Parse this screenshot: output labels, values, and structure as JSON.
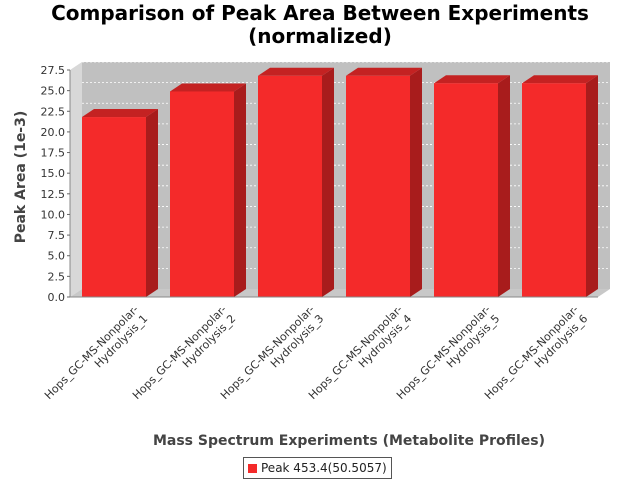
{
  "chart_data": {
    "type": "bar",
    "title_line1": "Comparison of Peak Area Between Experiments",
    "title_line2": "(normalized)",
    "xlabel": "Mass Spectrum Experiments (Metabolite Profiles)",
    "ylabel": "Peak Area (1e-3)",
    "ylim": [
      0,
      27.5
    ],
    "yticks": [
      "0.0",
      "2.5",
      "5.0",
      "7.5",
      "10.0",
      "12.5",
      "15.0",
      "17.5",
      "20.0",
      "22.5",
      "25.0",
      "27.5"
    ],
    "grid": true,
    "legend_position": "bottom",
    "categories": [
      [
        "Hops_GC-MS-Nonpolar-",
        "Hydrolysis_1"
      ],
      [
        "Hops_GC-MS-Nonpolar-",
        "Hydrolysis_2"
      ],
      [
        "Hops_GC-MS-Nonpolar-",
        "Hydrolysis_3"
      ],
      [
        "Hops_GC-MS-Nonpolar-",
        "Hydrolysis_4"
      ],
      [
        "Hops_GC-MS-Nonpolar-",
        "Hydrolysis_5"
      ],
      [
        "Hops_GC-MS-Nonpolar-",
        "Hydrolysis_6"
      ]
    ],
    "series": [
      {
        "name": "Peak 453.4(50.5057)",
        "values": [
          21.8,
          24.9,
          26.8,
          26.8,
          25.9,
          25.9
        ]
      }
    ],
    "colors": {
      "bar_front": "#f42a2a",
      "bar_top": "#c42222",
      "bar_side": "#a81c1c",
      "plot_back": "#c0c0c0",
      "plot_wall": "#d8d8d8",
      "plot_floor": "#c8c8c8"
    }
  }
}
